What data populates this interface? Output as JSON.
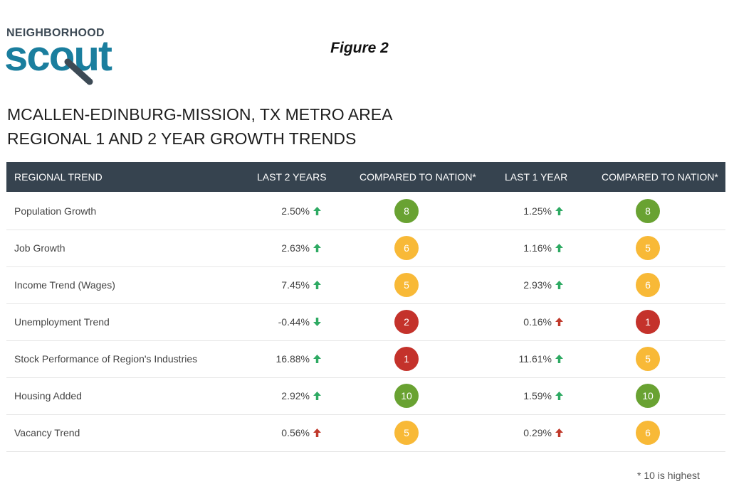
{
  "logo": {
    "top": "NEIGHBORHOOD",
    "bottom": "scout"
  },
  "figure": "Figure 2",
  "title": [
    "MCALLEN-EDINBURG-MISSION, TX METRO AREA",
    "REGIONAL 1 AND 2 YEAR GROWTH TRENDS"
  ],
  "table": {
    "header": [
      "REGIONAL TREND",
      "LAST 2 YEARS",
      "COMPARED TO NATION*",
      "LAST 1 YEAR",
      "COMPARED TO NATION*"
    ],
    "rows": [
      [
        "Population Growth",
        "2.50%",
        8,
        "1.25%",
        8
      ],
      [
        "Job Growth",
        "2.63%",
        6,
        "1.16%",
        5
      ],
      [
        "Income Trend (Wages)",
        "7.45%",
        5,
        "2.93%",
        6
      ],
      [
        "Unemployment Trend",
        "-0.44%",
        2,
        "0.16%",
        1
      ],
      [
        "Stock Performance of Region's Industries",
        "16.88%",
        1,
        "11.61%",
        5
      ],
      [
        "Housing Added",
        "2.92%",
        10,
        "1.59%",
        10
      ],
      [
        "Vacancy Trend",
        "0.56%",
        5,
        "0.29%",
        6
      ]
    ]
  },
  "footnote": "* 10 is highest"
}
